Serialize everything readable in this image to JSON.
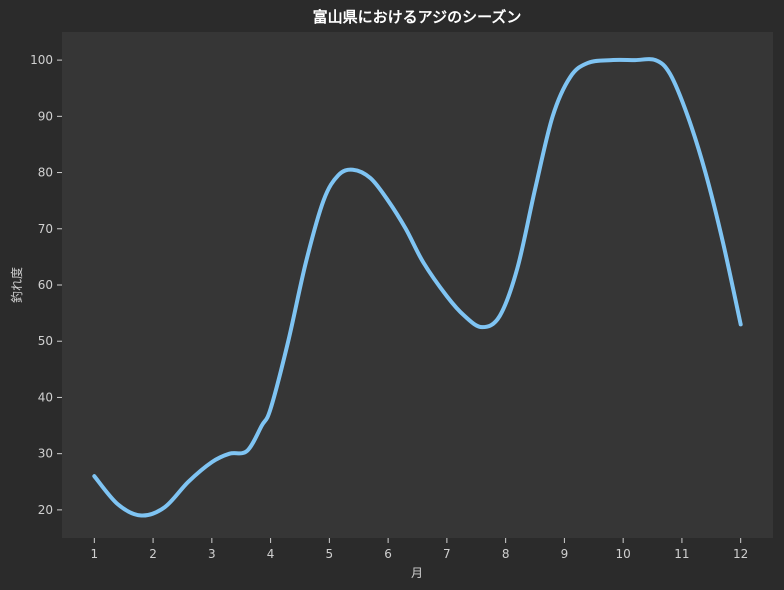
{
  "chart_data": {
    "type": "line",
    "title": "富山県におけるアジのシーズン",
    "xlabel": "月",
    "ylabel": "釣れ度",
    "x": [
      1,
      2,
      3,
      4,
      5,
      6,
      7,
      8,
      9,
      10,
      11,
      12
    ],
    "x_tick_labels": [
      "1",
      "2",
      "3",
      "4",
      "5",
      "6",
      "7",
      "8",
      "9",
      "10",
      "11",
      "12"
    ],
    "y_ticks": [
      20,
      30,
      40,
      50,
      60,
      70,
      80,
      90,
      100
    ],
    "y_tick_labels": [
      "20",
      "30",
      "40",
      "50",
      "60",
      "70",
      "80",
      "90",
      "100"
    ],
    "xlim": [
      0.45,
      12.55
    ],
    "ylim": [
      15,
      105
    ],
    "series": [
      {
        "values": [
          26,
          20,
          28,
          38,
          75,
          76,
          58,
          58,
          93,
          100,
          94,
          53
        ],
        "smooth_curve": [
          [
            1.0,
            26
          ],
          [
            1.4,
            21
          ],
          [
            1.8,
            19
          ],
          [
            2.2,
            20.5
          ],
          [
            2.6,
            25
          ],
          [
            3.0,
            28.5
          ],
          [
            3.3,
            30
          ],
          [
            3.6,
            30.5
          ],
          [
            3.85,
            35
          ],
          [
            4.0,
            38
          ],
          [
            4.3,
            50
          ],
          [
            4.6,
            64
          ],
          [
            4.9,
            75
          ],
          [
            5.15,
            79.5
          ],
          [
            5.4,
            80.5
          ],
          [
            5.7,
            79
          ],
          [
            6.0,
            75
          ],
          [
            6.3,
            70
          ],
          [
            6.6,
            64
          ],
          [
            7.0,
            58
          ],
          [
            7.3,
            54.5
          ],
          [
            7.6,
            52.5
          ],
          [
            7.9,
            54.5
          ],
          [
            8.2,
            63
          ],
          [
            8.5,
            77
          ],
          [
            8.8,
            90
          ],
          [
            9.1,
            97
          ],
          [
            9.4,
            99.5
          ],
          [
            9.8,
            100
          ],
          [
            10.2,
            100
          ],
          [
            10.55,
            100
          ],
          [
            10.8,
            97.5
          ],
          [
            11.1,
            90
          ],
          [
            11.4,
            80
          ],
          [
            11.7,
            67.5
          ],
          [
            12.0,
            53
          ]
        ],
        "color": "#7fc4f3"
      }
    ],
    "grid": false,
    "colors": {
      "background": "#2b2b2b",
      "plot_background": "#363636",
      "line": "#7fc4f3",
      "text": "#d0d0d0",
      "title": "#ffffff"
    }
  }
}
